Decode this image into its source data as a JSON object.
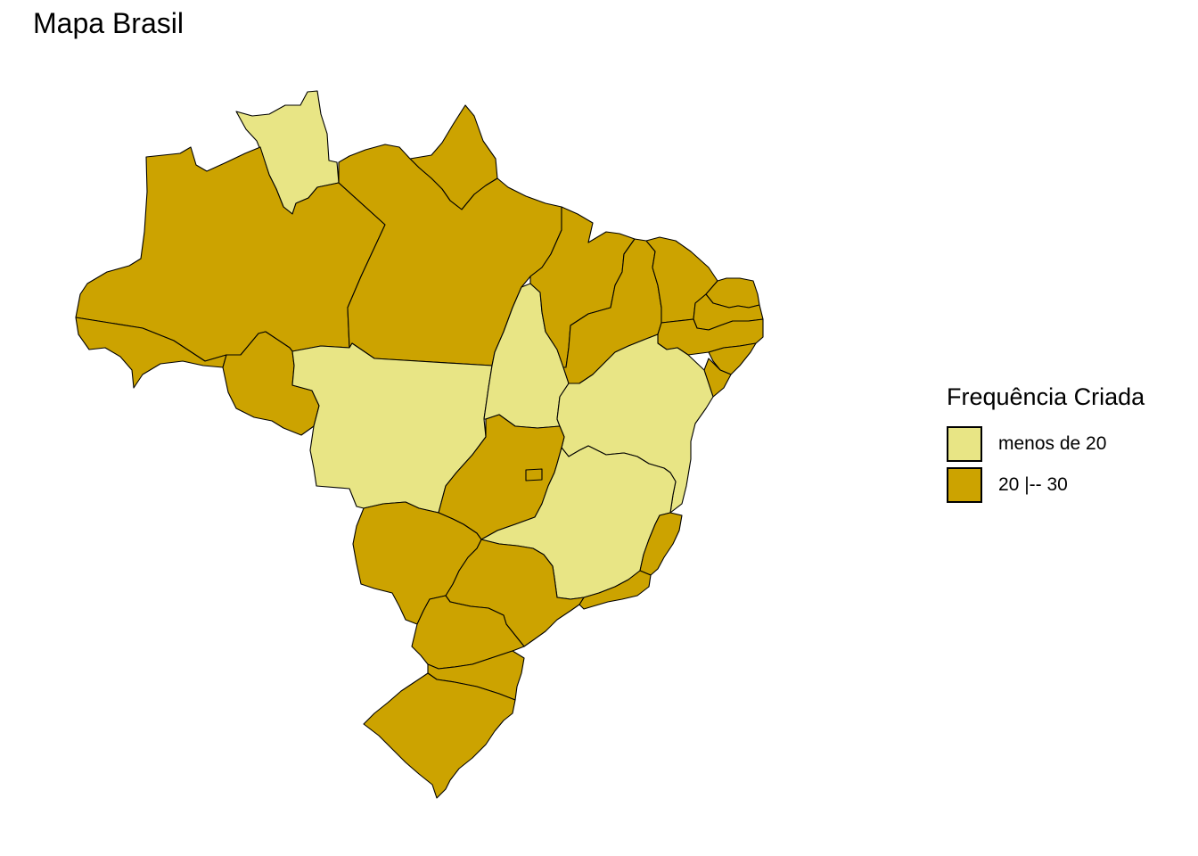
{
  "title": "Mapa Brasil",
  "legend": {
    "title": "Frequência Criada",
    "items": [
      {
        "label": "menos de 20",
        "color": "#E8E585"
      },
      {
        "label": "20 |-- 30",
        "color": "#CCA300"
      }
    ]
  },
  "colors": {
    "low": "#E8E585",
    "high": "#CCA300",
    "border": "#000000"
  },
  "states": [
    {
      "name": "RR",
      "category": "menos de 20"
    },
    {
      "name": "AM",
      "category": "20 |-- 30"
    },
    {
      "name": "AC",
      "category": "20 |-- 30"
    },
    {
      "name": "RO",
      "category": "20 |-- 30"
    },
    {
      "name": "PA",
      "category": "20 |-- 30"
    },
    {
      "name": "AP",
      "category": "20 |-- 30"
    },
    {
      "name": "MT",
      "category": "menos de 20"
    },
    {
      "name": "TO",
      "category": "menos de 20"
    },
    {
      "name": "MA",
      "category": "20 |-- 30"
    },
    {
      "name": "PI",
      "category": "20 |-- 30"
    },
    {
      "name": "CE",
      "category": "20 |-- 30"
    },
    {
      "name": "RN",
      "category": "20 |-- 30"
    },
    {
      "name": "PB",
      "category": "20 |-- 30"
    },
    {
      "name": "PE",
      "category": "20 |-- 30"
    },
    {
      "name": "AL",
      "category": "20 |-- 30"
    },
    {
      "name": "SE",
      "category": "20 |-- 30"
    },
    {
      "name": "BA",
      "category": "menos de 20"
    },
    {
      "name": "GO",
      "category": "20 |-- 30"
    },
    {
      "name": "DF",
      "category": "20 |-- 30"
    },
    {
      "name": "MS",
      "category": "20 |-- 30"
    },
    {
      "name": "MG",
      "category": "menos de 20"
    },
    {
      "name": "ES",
      "category": "20 |-- 30"
    },
    {
      "name": "RJ",
      "category": "20 |-- 30"
    },
    {
      "name": "SP",
      "category": "20 |-- 30"
    },
    {
      "name": "PR",
      "category": "20 |-- 30"
    },
    {
      "name": "SC",
      "category": "20 |-- 30"
    },
    {
      "name": "RS",
      "category": "20 |-- 30"
    }
  ]
}
